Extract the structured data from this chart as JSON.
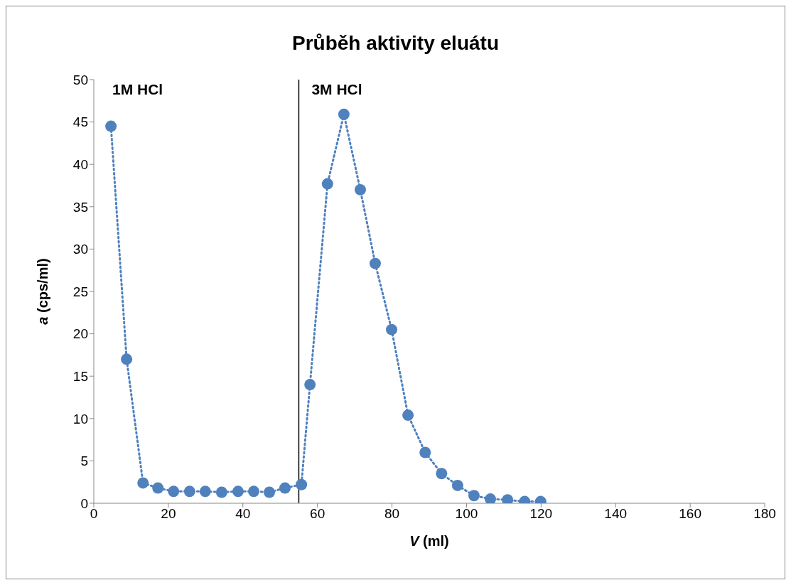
{
  "chart_data": {
    "type": "line",
    "title": "Průběh aktivity eluátu",
    "xlabel": "V (ml)",
    "ylabel": "a (cps/ml)",
    "x": [
      4.6,
      8.8,
      13.2,
      17.2,
      21.4,
      25.7,
      29.9,
      34.3,
      38.7,
      42.9,
      47.1,
      51.3,
      55.7,
      58.0,
      62.7,
      67.1,
      71.5,
      75.5,
      79.9,
      84.3,
      88.9,
      93.3,
      97.6,
      102.0,
      106.4,
      111.0,
      115.6,
      119.9
    ],
    "series": [
      {
        "color": "#4f81bd",
        "values": [
          44.5,
          17.0,
          2.4,
          1.8,
          1.4,
          1.4,
          1.4,
          1.3,
          1.4,
          1.4,
          1.3,
          1.8,
          2.2,
          14.0,
          37.7,
          45.9,
          37.0,
          28.3,
          20.5,
          10.4,
          6.0,
          3.5,
          2.1,
          0.9,
          0.5,
          0.4,
          0.2,
          0.2
        ]
      }
    ],
    "xlim": [
      0,
      180
    ],
    "xticks": [
      0,
      20,
      40,
      60,
      80,
      100,
      120,
      140,
      160,
      180
    ],
    "ylim": [
      0,
      50
    ],
    "yticks": [
      0,
      5,
      10,
      15,
      20,
      25,
      30,
      35,
      40,
      45,
      50
    ],
    "ref_lines": [
      {
        "axis": "x",
        "value": 55,
        "color": "#000000"
      }
    ],
    "annotations": [
      "1M HCl",
      "3M HCl"
    ],
    "marker": "circle",
    "line_style": "dotted",
    "grid": false,
    "legend": false
  }
}
